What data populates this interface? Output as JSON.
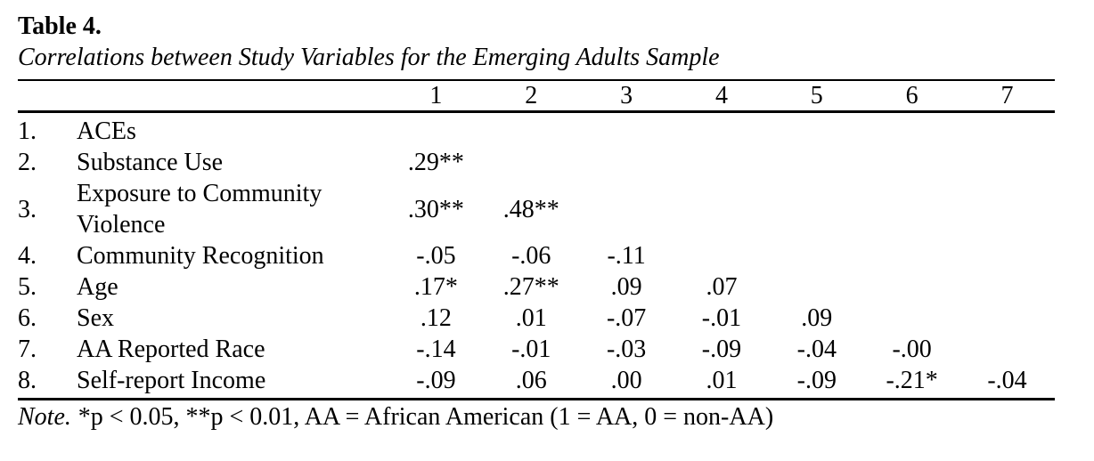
{
  "page": {
    "background": "#ffffff",
    "text_color": "#000000"
  },
  "table": {
    "label": "Table 4.",
    "caption": "Correlations between Study Variables for the Emerging Adults Sample",
    "column_headers": [
      "1",
      "2",
      "3",
      "4",
      "5",
      "6",
      "7"
    ],
    "rows": [
      {
        "num": "1.",
        "label": "ACEs",
        "values": [
          "",
          "",
          "",
          "",
          "",
          "",
          ""
        ]
      },
      {
        "num": "2.",
        "label": "Substance Use",
        "values": [
          ".29**",
          "",
          "",
          "",
          "",
          "",
          ""
        ]
      },
      {
        "num": "3.",
        "label": "Exposure to Community Violence",
        "values": [
          ".30**",
          ".48**",
          "",
          "",
          "",
          "",
          ""
        ]
      },
      {
        "num": "4.",
        "label": "Community Recognition",
        "values": [
          "-.05",
          "-.06",
          "-.11",
          "",
          "",
          "",
          ""
        ]
      },
      {
        "num": "5.",
        "label": "Age",
        "values": [
          ".17*",
          ".27**",
          ".09",
          ".07",
          "",
          "",
          ""
        ]
      },
      {
        "num": "6.",
        "label": "Sex",
        "values": [
          ".12",
          ".01",
          "-.07",
          "-.01",
          ".09",
          "",
          ""
        ]
      },
      {
        "num": "7.",
        "label": "AA Reported Race",
        "values": [
          "-.14",
          "-.01",
          "-.03",
          "-.09",
          "-.04",
          "-.00",
          ""
        ]
      },
      {
        "num": "8.",
        "label": "Self-report Income",
        "values": [
          "-.09",
          ".06",
          ".00",
          ".01",
          "-.09",
          "-.21*",
          "-.04"
        ]
      }
    ],
    "note": {
      "label": "Note.",
      "text": "*p < 0.05, **p < 0.01, AA = African American (1 = AA, 0 = non-AA)"
    }
  }
}
